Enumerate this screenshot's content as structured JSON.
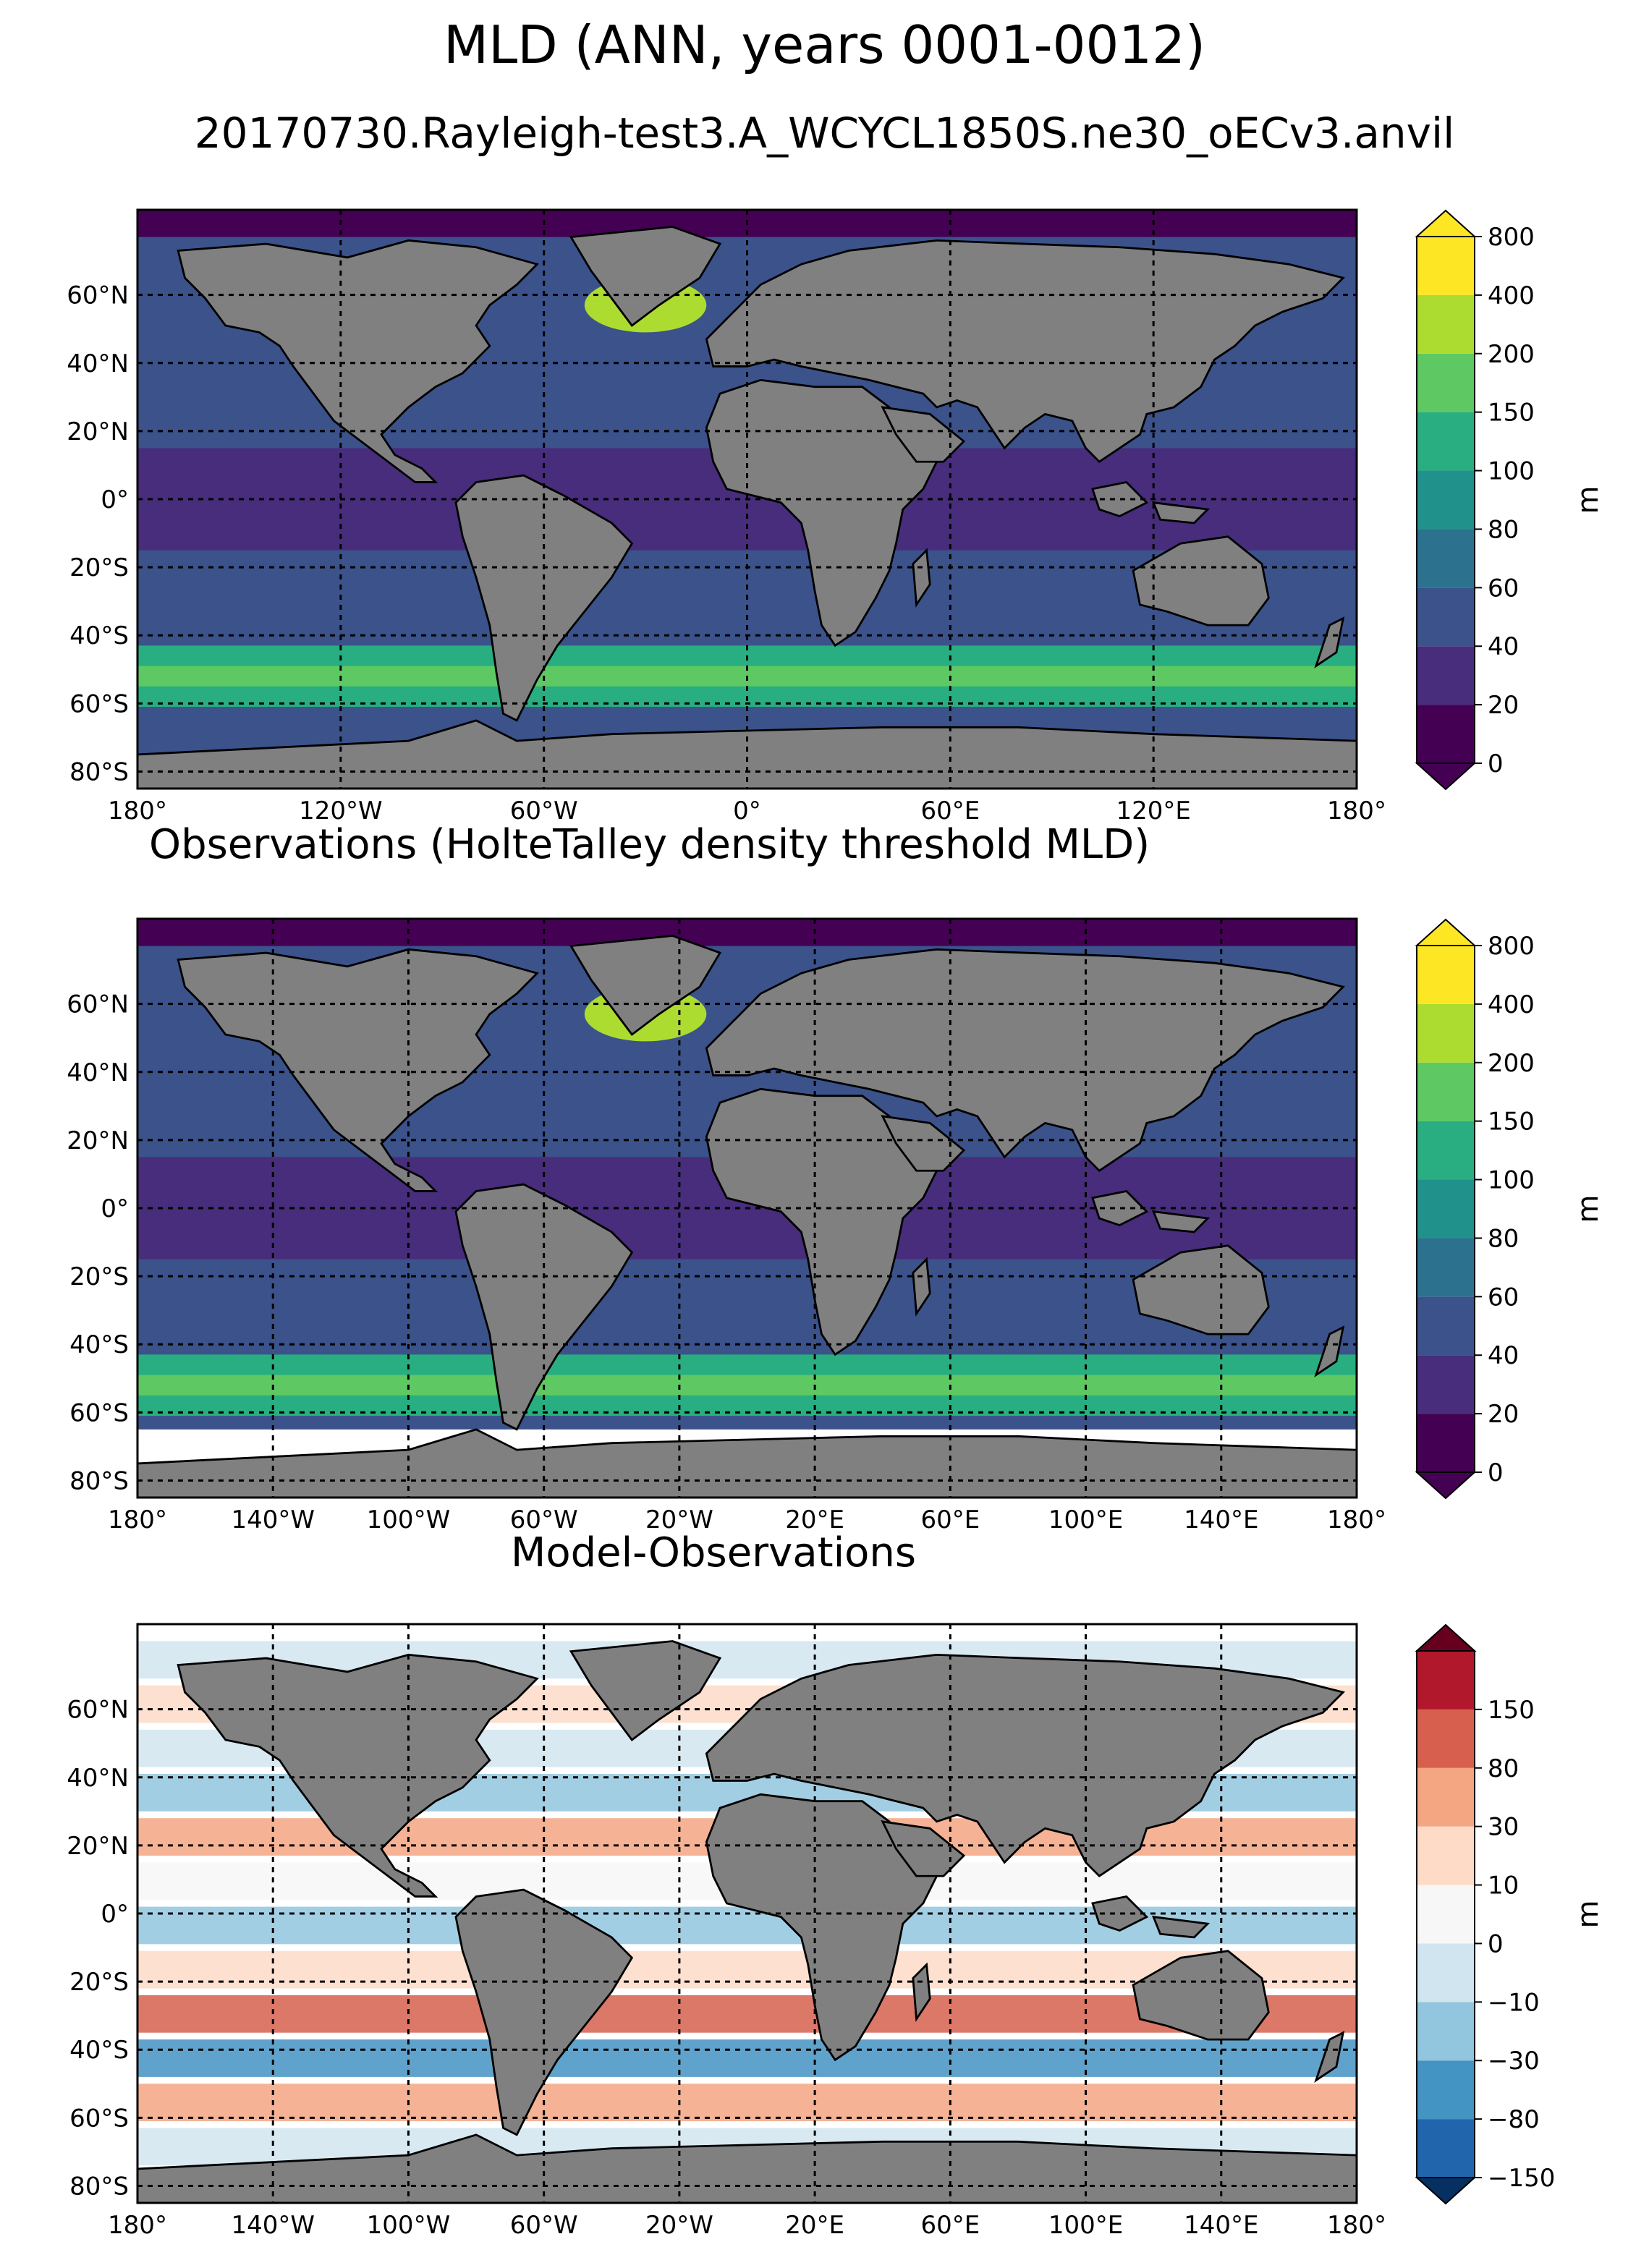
{
  "figure": {
    "title": "MLD (ANN, years 0001-0012)",
    "subtitle": "20170730.Rayleigh-test3.A_WCYCL1850S.ne30_oECv3.anvil"
  },
  "panels": [
    {
      "id": "model",
      "title": "",
      "lon_labels": [
        "180°",
        "120°W",
        "60°W",
        "0°",
        "60°E",
        "120°E",
        "180°"
      ],
      "lat_labels": [
        "60°N",
        "40°N",
        "20°N",
        "0°",
        "20°S",
        "40°S",
        "60°S",
        "80°S"
      ],
      "colorbar": {
        "unit": "m",
        "levels": [
          "0",
          "20",
          "40",
          "60",
          "80",
          "100",
          "150",
          "200",
          "400",
          "800"
        ],
        "colors": [
          "#440154",
          "#472d7b",
          "#3b528b",
          "#2c728e",
          "#21918c",
          "#28ae80",
          "#5ec962",
          "#addc30",
          "#fde725"
        ],
        "extend_low": "#440154",
        "extend_high": "#fde725"
      }
    },
    {
      "id": "obs",
      "title": "Observations (HolteTalley density threshold MLD)",
      "lon_labels": [
        "180°",
        "140°W",
        "100°W",
        "60°W",
        "20°W",
        "20°E",
        "60°E",
        "100°E",
        "140°E",
        "180°"
      ],
      "lat_labels": [
        "60°N",
        "40°N",
        "20°N",
        "0°",
        "20°S",
        "40°S",
        "60°S",
        "80°S"
      ],
      "colorbar": {
        "unit": "m",
        "levels": [
          "0",
          "20",
          "40",
          "60",
          "80",
          "100",
          "150",
          "200",
          "400",
          "800"
        ],
        "colors": [
          "#440154",
          "#472d7b",
          "#3b528b",
          "#2c728e",
          "#21918c",
          "#28ae80",
          "#5ec962",
          "#addc30",
          "#fde725"
        ],
        "extend_low": "#440154",
        "extend_high": "#fde725"
      }
    },
    {
      "id": "diff",
      "title": "Model-Observations",
      "lon_labels": [
        "180°",
        "140°W",
        "100°W",
        "60°W",
        "20°W",
        "20°E",
        "60°E",
        "100°E",
        "140°E",
        "180°"
      ],
      "lat_labels": [
        "60°N",
        "40°N",
        "20°N",
        "0°",
        "20°S",
        "40°S",
        "60°S",
        "80°S"
      ],
      "colorbar": {
        "unit": "m",
        "levels": [
          "−150",
          "−80",
          "−30",
          "−10",
          "0",
          "10",
          "30",
          "80",
          "150"
        ],
        "colors": [
          "#2166ac",
          "#4393c3",
          "#92c5de",
          "#d1e5f0",
          "#f7f7f7",
          "#fddbc7",
          "#f4a582",
          "#d6604d",
          "#b2182b"
        ],
        "extend_low": "#053061",
        "extend_high": "#67001f"
      }
    }
  ],
  "colors": {
    "land": "#808080",
    "coast": "#000000",
    "missing": "#ffffff"
  }
}
